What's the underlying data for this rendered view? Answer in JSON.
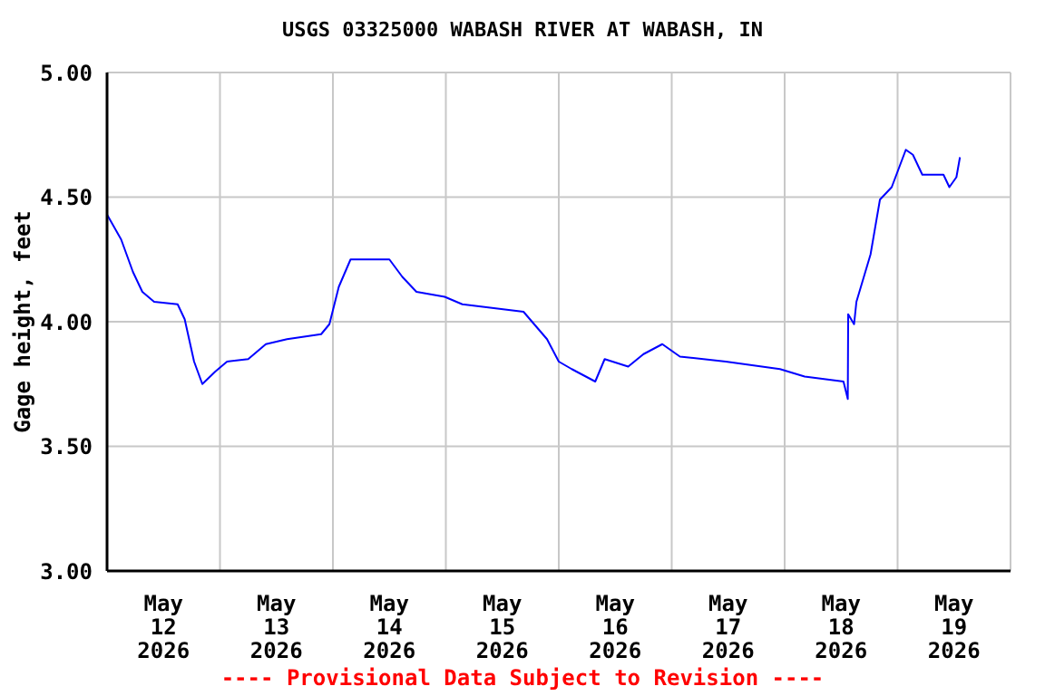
{
  "chart_data": {
    "type": "line",
    "title": "USGS 03325000 WABASH RIVER AT WABASH, IN",
    "ylabel": "Gage height, feet",
    "annotations": [
      "---- Provisional Data Subject to Revision ----"
    ],
    "series": [
      {
        "color": "#0000ff",
        "x": [
          "2026-05-12T00:00",
          "2026-05-12T03:00",
          "2026-05-12T05:30",
          "2026-05-12T07:30",
          "2026-05-12T10:00",
          "2026-05-12T15:00",
          "2026-05-12T16:30",
          "2026-05-12T18:30",
          "2026-05-12T20:15",
          "2026-05-12T23:00",
          "2026-05-13T01:30",
          "2026-05-13T06:00",
          "2026-05-13T09:45",
          "2026-05-13T14:15",
          "2026-05-13T21:30",
          "2026-05-13T23:15",
          "2026-05-14T01:15",
          "2026-05-14T03:45",
          "2026-05-14T12:00",
          "2026-05-14T14:45",
          "2026-05-14T17:45",
          "2026-05-14T23:45",
          "2026-05-15T03:30",
          "2026-05-15T16:30",
          "2026-05-15T21:30",
          "2026-05-16T00:00",
          "2026-05-16T02:45",
          "2026-05-16T07:45",
          "2026-05-16T09:45",
          "2026-05-16T14:45",
          "2026-05-16T18:00",
          "2026-05-16T22:00",
          "2026-05-17T01:45",
          "2026-05-17T11:30",
          "2026-05-17T23:00",
          "2026-05-18T04:15",
          "2026-05-18T12:30",
          "2026-05-18T13:25",
          "2026-05-18T13:30",
          "2026-05-18T14:45",
          "2026-05-18T15:15",
          "2026-05-18T18:15",
          "2026-05-18T20:15",
          "2026-05-18T22:45",
          "2026-05-19T01:45",
          "2026-05-19T03:15",
          "2026-05-19T05:15",
          "2026-05-19T09:45",
          "2026-05-19T11:00",
          "2026-05-19T12:30",
          "2026-05-19T13:15"
        ],
        "values": [
          4.43,
          4.33,
          4.2,
          4.12,
          4.08,
          4.07,
          4.01,
          3.84,
          3.75,
          3.8,
          3.84,
          3.85,
          3.91,
          3.93,
          3.95,
          3.99,
          4.14,
          4.25,
          4.25,
          4.18,
          4.12,
          4.1,
          4.07,
          4.04,
          3.93,
          3.84,
          3.81,
          3.76,
          3.85,
          3.82,
          3.87,
          3.91,
          3.86,
          3.84,
          3.81,
          3.78,
          3.76,
          3.69,
          4.03,
          3.99,
          4.08,
          4.27,
          4.49,
          4.54,
          4.69,
          4.67,
          4.59,
          4.59,
          4.54,
          4.58,
          4.66
        ]
      }
    ],
    "xlim": [
      "2026-05-12",
      "2026-05-20"
    ],
    "xticks": [
      {
        "value": "2026-05-12T12:00",
        "label": "May\n12\n2026"
      },
      {
        "value": "2026-05-13T12:00",
        "label": "May\n13\n2026"
      },
      {
        "value": "2026-05-14T12:00",
        "label": "May\n14\n2026"
      },
      {
        "value": "2026-05-15T12:00",
        "label": "May\n15\n2026"
      },
      {
        "value": "2026-05-16T12:00",
        "label": "May\n16\n2026"
      },
      {
        "value": "2026-05-17T12:00",
        "label": "May\n17\n2026"
      },
      {
        "value": "2026-05-18T12:00",
        "label": "May\n18\n2026"
      },
      {
        "value": "2026-05-19T12:00",
        "label": "May\n19\n2026"
      },
      {
        "value": "2026-05-13",
        "label": null
      },
      {
        "value": "2026-05-14",
        "label": null
      },
      {
        "value": "2026-05-15",
        "label": null
      },
      {
        "value": "2026-05-16",
        "label": null
      },
      {
        "value": "2026-05-17",
        "label": null
      },
      {
        "value": "2026-05-18",
        "label": null
      },
      {
        "value": "2026-05-19",
        "label": null
      }
    ],
    "ylim": [
      3,
      5
    ],
    "yticks": [
      {
        "value": 3,
        "label": "3.00"
      },
      {
        "value": 3.5,
        "label": "3.50"
      },
      {
        "value": 4,
        "label": "4.00"
      },
      {
        "value": 4.5,
        "label": "4.50"
      },
      {
        "value": 5,
        "label": "5.00"
      }
    ],
    "grid": true,
    "legend": false,
    "marker": "none",
    "line_style": "solid"
  }
}
